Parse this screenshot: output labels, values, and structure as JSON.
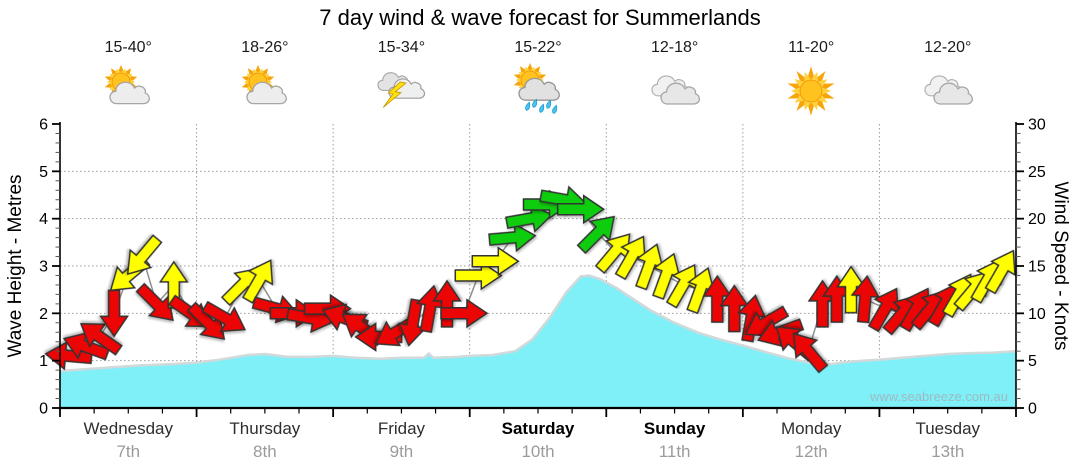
{
  "header": {
    "title": "7 day wind & wave forecast for Summerlands"
  },
  "watermark": "www.seabreeze.com.au",
  "axes": {
    "left_label": "Wave Height - Metres",
    "right_label": "Wind Speed - Knots",
    "left_ticks": [
      0,
      1,
      2,
      3,
      4,
      5,
      6
    ],
    "right_ticks": [
      0,
      5,
      10,
      15,
      20,
      25,
      30
    ]
  },
  "days": [
    {
      "name": "Wednesday",
      "date": "7th",
      "temp": "15-40°",
      "icon": "sun-cloud-icon",
      "bold": false
    },
    {
      "name": "Thursday",
      "date": "8th",
      "temp": "18-26°",
      "icon": "sun-cloud-icon",
      "bold": false
    },
    {
      "name": "Friday",
      "date": "9th",
      "temp": "15-34°",
      "icon": "storm-icon",
      "bold": false
    },
    {
      "name": "Saturday",
      "date": "10th",
      "temp": "15-22°",
      "icon": "sun-rain-icon",
      "bold": true
    },
    {
      "name": "Sunday",
      "date": "11th",
      "temp": "12-18°",
      "icon": "clouds-icon",
      "bold": true
    },
    {
      "name": "Monday",
      "date": "12th",
      "temp": "11-20°",
      "icon": "sun-icon",
      "bold": false
    },
    {
      "name": "Tuesday",
      "date": "13th",
      "temp": "12-20°",
      "icon": "clouds-icon",
      "bold": false
    }
  ],
  "chart_data": {
    "type": "area+wind-arrows",
    "x_unit": "hours_from_wednesday_00",
    "x_range": [
      0,
      168
    ],
    "wave_axis": {
      "label": "Wave Height - Metres",
      "range": [
        0,
        6
      ]
    },
    "wind_axis": {
      "label": "Wind Speed - Knots",
      "range": [
        0,
        30
      ]
    },
    "grid": {
      "horizontal_every_m": 1,
      "vertical_every_h": 24,
      "style": "dotted"
    },
    "wave_height_m": [
      [
        0,
        0.78
      ],
      [
        4,
        0.82
      ],
      [
        8,
        0.85
      ],
      [
        14,
        0.9
      ],
      [
        20,
        0.93
      ],
      [
        24,
        0.96
      ],
      [
        28,
        1.02
      ],
      [
        33,
        1.12
      ],
      [
        36,
        1.14
      ],
      [
        40,
        1.08
      ],
      [
        44,
        1.08
      ],
      [
        48,
        1.1
      ],
      [
        52,
        1.06
      ],
      [
        56,
        1.04
      ],
      [
        60,
        1.06
      ],
      [
        64,
        1.06
      ],
      [
        64.8,
        1.15
      ],
      [
        65.6,
        1.06
      ],
      [
        70,
        1.08
      ],
      [
        72,
        1.1
      ],
      [
        76,
        1.12
      ],
      [
        80,
        1.2
      ],
      [
        83,
        1.45
      ],
      [
        86,
        1.9
      ],
      [
        89,
        2.45
      ],
      [
        91.5,
        2.78
      ],
      [
        93,
        2.8
      ],
      [
        95,
        2.72
      ],
      [
        98,
        2.52
      ],
      [
        101,
        2.28
      ],
      [
        104,
        2.05
      ],
      [
        108,
        1.8
      ],
      [
        112,
        1.6
      ],
      [
        116,
        1.45
      ],
      [
        120,
        1.32
      ],
      [
        124,
        1.18
      ],
      [
        128,
        1.05
      ],
      [
        132,
        0.95
      ],
      [
        135,
        0.92
      ],
      [
        138,
        0.97
      ],
      [
        141,
        1.0
      ],
      [
        144,
        1.02
      ],
      [
        148,
        1.06
      ],
      [
        152,
        1.1
      ],
      [
        156,
        1.14
      ],
      [
        160,
        1.16
      ],
      [
        164,
        1.17
      ],
      [
        168,
        1.2
      ]
    ],
    "wind_arrows_format": [
      "hour",
      "knots",
      "rotation_deg_cw_0_points_right"
    ],
    "wind_arrows": [
      [
        1.5,
        5.5,
        185
      ],
      [
        4.5,
        6.5,
        200
      ],
      [
        7,
        7.5,
        215
      ],
      [
        9.5,
        10,
        90
      ],
      [
        12,
        14,
        140
      ],
      [
        14.5,
        16,
        130
      ],
      [
        17,
        11,
        45
      ],
      [
        20,
        13,
        270
      ],
      [
        23,
        10,
        35
      ],
      [
        26,
        9,
        45
      ],
      [
        29,
        9.5,
        30
      ],
      [
        32,
        13,
        315
      ],
      [
        35,
        13.5,
        300
      ],
      [
        38,
        10.5,
        15
      ],
      [
        41,
        10,
        0
      ],
      [
        44,
        9.5,
        10
      ],
      [
        47,
        10.5,
        0
      ],
      [
        50,
        9.5,
        200
      ],
      [
        53,
        8.5,
        215
      ],
      [
        56,
        7.5,
        180
      ],
      [
        59,
        8,
        150
      ],
      [
        62,
        9,
        100
      ],
      [
        65,
        10.5,
        280
      ],
      [
        68,
        11,
        270
      ],
      [
        71,
        10,
        0
      ],
      [
        73.5,
        14,
        0
      ],
      [
        76.5,
        15.5,
        0
      ],
      [
        79.5,
        18,
        355
      ],
      [
        82.5,
        20,
        350
      ],
      [
        85.5,
        21.5,
        0
      ],
      [
        88.5,
        22,
        10
      ],
      [
        91.5,
        21,
        0
      ],
      [
        94.5,
        18.5,
        315
      ],
      [
        97.5,
        16.5,
        310
      ],
      [
        100.5,
        16,
        300
      ],
      [
        103.5,
        15,
        290
      ],
      [
        106.5,
        14,
        290
      ],
      [
        109.5,
        13,
        300
      ],
      [
        112.5,
        12.5,
        290
      ],
      [
        115.5,
        11.5,
        270
      ],
      [
        118.5,
        10.5,
        270
      ],
      [
        121.5,
        9.5,
        280
      ],
      [
        124,
        9,
        150
      ],
      [
        126.5,
        8,
        160
      ],
      [
        129,
        7,
        220
      ],
      [
        131.5,
        6,
        230
      ],
      [
        134,
        11,
        270
      ],
      [
        136.5,
        11.5,
        270
      ],
      [
        139,
        12.5,
        270
      ],
      [
        141.5,
        11.5,
        275
      ],
      [
        145,
        10.5,
        300
      ],
      [
        148,
        10,
        310
      ],
      [
        150.5,
        10.5,
        300
      ],
      [
        153,
        10.5,
        310
      ],
      [
        155.5,
        11,
        300
      ],
      [
        158,
        12,
        300
      ],
      [
        160.5,
        12.5,
        310
      ],
      [
        163,
        13.5,
        300
      ],
      [
        165.5,
        14.5,
        300
      ]
    ],
    "arrow_color_rule": {
      "red_below_kn": 12,
      "yellow_below_kn": 18,
      "green_from_kn": 18
    },
    "colors": {
      "wave_fill": "#7FEFF8",
      "wave_edge": "#d2d9da",
      "arrow_red": "#EB0505",
      "arrow_yellow": "#FFFF00",
      "arrow_green": "#0ECC0E",
      "arrow_outline": "#333333",
      "wind_line": "#8f8f8f",
      "grid": "#9e9e9e",
      "axis": "#000000"
    }
  }
}
